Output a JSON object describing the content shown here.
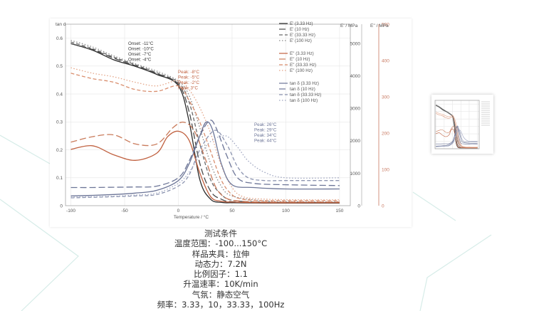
{
  "chart_data": {
    "type": "line",
    "title": "",
    "xlabel": "Temperature / °C",
    "xlim": [
      -105,
      160
    ],
    "x_ticks": [
      -100,
      -50,
      0,
      50,
      100,
      150
    ],
    "grid": true,
    "legend_position": "top-right",
    "axes": {
      "tan_delta": {
        "label": "tan d",
        "position": "left",
        "ylim": [
          0,
          0.65
        ],
        "ticks": [
          0,
          0.1,
          0.2,
          0.3,
          0.4,
          0.5,
          0.6
        ]
      },
      "e_prime": {
        "label": "E' / MPa",
        "position": "right-inner",
        "ylim": [
          0,
          5600
        ],
        "ticks": [
          0,
          1000,
          2000,
          3000,
          4000,
          5000
        ]
      },
      "e_double_prime": {
        "label": "E'' / MPa",
        "position": "right-outer",
        "ylim": [
          0,
          500
        ],
        "ticks": [
          0,
          100,
          200,
          300,
          400,
          500
        ]
      }
    },
    "series": [
      {
        "name": "E' (3.33 Hz)",
        "axis": "e_prime",
        "color": "#2b2b2b",
        "dash": "solid",
        "x": [
          -100,
          -80,
          -60,
          -40,
          -20,
          0,
          10,
          20,
          30,
          40,
          50,
          80,
          120,
          150
        ],
        "y": [
          5000,
          4800,
          4500,
          4300,
          4050,
          3700,
          2600,
          800,
          200,
          100,
          90,
          80,
          80,
          80
        ]
      },
      {
        "name": "E' (10 Hz)",
        "axis": "e_prime",
        "color": "#4a4a4a",
        "dash": "long-dash",
        "x": [
          -100,
          -80,
          -60,
          -40,
          -20,
          0,
          10,
          20,
          30,
          40,
          50,
          80,
          120,
          150
        ],
        "y": [
          5000,
          4820,
          4550,
          4320,
          4080,
          3750,
          2900,
          1300,
          450,
          200,
          120,
          100,
          90,
          90
        ]
      },
      {
        "name": "E' (33.33 Hz)",
        "axis": "e_prime",
        "color": "#6a6a6a",
        "dash": "dash",
        "x": [
          -100,
          -80,
          -60,
          -40,
          -20,
          0,
          10,
          20,
          30,
          40,
          50,
          80,
          120,
          150
        ],
        "y": [
          5050,
          4850,
          4580,
          4350,
          4100,
          3800,
          3200,
          1900,
          800,
          350,
          170,
          110,
          100,
          100
        ]
      },
      {
        "name": "E' (100 Hz)",
        "axis": "e_prime",
        "color": "#8a8a8a",
        "dash": "dot",
        "x": [
          -100,
          -80,
          -60,
          -40,
          -20,
          0,
          10,
          20,
          30,
          40,
          50,
          80,
          120,
          150
        ],
        "y": [
          5100,
          4900,
          4620,
          4380,
          4150,
          3850,
          3400,
          2400,
          1300,
          600,
          300,
          150,
          120,
          120
        ]
      },
      {
        "name": "E'' (3.33 Hz)",
        "axis": "e_double_prime",
        "color": "#c0603f",
        "dash": "solid",
        "x": [
          -100,
          -80,
          -60,
          -40,
          -20,
          -10,
          0,
          10,
          20,
          30,
          40,
          50,
          80,
          120,
          150
        ],
        "y": [
          155,
          165,
          140,
          125,
          145,
          190,
          205,
          180,
          90,
          25,
          12,
          10,
          8,
          8,
          8
        ]
      },
      {
        "name": "E'' (10 Hz)",
        "axis": "e_double_prime",
        "color": "#c97a5a",
        "dash": "long-dash",
        "x": [
          -100,
          -80,
          -60,
          -40,
          -20,
          -5,
          5,
          15,
          25,
          35,
          45,
          60,
          80,
          120,
          150
        ],
        "y": [
          175,
          190,
          195,
          170,
          170,
          215,
          230,
          205,
          130,
          50,
          20,
          12,
          10,
          10,
          10
        ]
      },
      {
        "name": "E'' (33.33 Hz)",
        "axis": "e_double_prime",
        "color": "#d98e6e",
        "dash": "dash",
        "x": [
          -100,
          -80,
          -60,
          -40,
          -20,
          0,
          10,
          20,
          30,
          40,
          50,
          60,
          80,
          120,
          150
        ],
        "y": [
          365,
          350,
          340,
          320,
          315,
          330,
          290,
          230,
          150,
          70,
          30,
          18,
          14,
          14,
          14
        ]
      },
      {
        "name": "E'' (100 Hz)",
        "axis": "e_double_prime",
        "color": "#e4a588",
        "dash": "dot",
        "x": [
          -100,
          -80,
          -60,
          -40,
          -20,
          0,
          10,
          20,
          30,
          40,
          50,
          60,
          80,
          120,
          150
        ],
        "y": [
          380,
          365,
          355,
          340,
          330,
          345,
          320,
          270,
          200,
          110,
          50,
          25,
          18,
          16,
          16
        ]
      },
      {
        "name": "tan δ (3.33 Hz)",
        "axis": "tan_delta",
        "color": "#6c7597",
        "dash": "solid",
        "x": [
          -100,
          -80,
          -60,
          -40,
          -20,
          0,
          10,
          20,
          26,
          32,
          40,
          50,
          70,
          100,
          150
        ],
        "y": [
          0.035,
          0.037,
          0.04,
          0.045,
          0.055,
          0.09,
          0.15,
          0.25,
          0.3,
          0.27,
          0.15,
          0.075,
          0.065,
          0.06,
          0.06
        ]
      },
      {
        "name": "tan δ (10 Hz)",
        "axis": "tan_delta",
        "color": "#6c7597",
        "dash": "long-dash",
        "x": [
          -100,
          -80,
          -60,
          -40,
          -20,
          0,
          10,
          20,
          29,
          35,
          45,
          55,
          70,
          100,
          150
        ],
        "y": [
          0.065,
          0.065,
          0.066,
          0.067,
          0.07,
          0.1,
          0.16,
          0.25,
          0.305,
          0.28,
          0.18,
          0.1,
          0.08,
          0.075,
          0.072
        ]
      },
      {
        "name": "tan δ (33.33 Hz)",
        "axis": "tan_delta",
        "color": "#8c94b0",
        "dash": "dash",
        "x": [
          -100,
          -80,
          -60,
          -40,
          -20,
          0,
          10,
          20,
          34,
          45,
          55,
          65,
          80,
          100,
          150
        ],
        "y": [
          0.028,
          0.03,
          0.032,
          0.035,
          0.04,
          0.07,
          0.11,
          0.2,
          0.27,
          0.22,
          0.14,
          0.1,
          0.09,
          0.09,
          0.09
        ]
      },
      {
        "name": "tan δ (100 Hz)",
        "axis": "tan_delta",
        "color": "#9ea5c0",
        "dash": "dot",
        "x": [
          -100,
          -80,
          -60,
          -40,
          -20,
          0,
          10,
          20,
          30,
          44,
          55,
          65,
          80,
          100,
          150
        ],
        "y": [
          0.03,
          0.032,
          0.034,
          0.038,
          0.045,
          0.08,
          0.12,
          0.18,
          0.23,
          0.25,
          0.21,
          0.16,
          0.12,
          0.1,
          0.1
        ]
      }
    ],
    "annotations": {
      "onset_lines": [
        "Onset: -11°C",
        "Onset: -10°C",
        "Onset:  -7°C",
        "Onset:  -4°C"
      ],
      "peak_edd_lines": [
        "Peak: -8°C",
        "Peak: -5°C",
        "Peak: -2°C",
        "Peak: 3°C"
      ],
      "peak_tan_lines": [
        "Peak: 26°C",
        "Peak: 29°C",
        "Peak: 34°C",
        "Peak: 44°C"
      ]
    }
  },
  "test_conditions": {
    "title": "测试条件",
    "lines": [
      "温度范围：-100...150°C",
      "样品夹具：拉伸",
      "动态力：7.2N",
      "比例因子：1.1",
      "升温速率：10K/min",
      "气氛：静态空气",
      "频率：3.33，10，33.33，100Hz"
    ]
  },
  "colors": {
    "e_prime": "#2b2b2b",
    "e_double_prime": "#c0603f",
    "tan_delta": "#6c7597",
    "e_double_prime_axis": "#c87860",
    "background_lines": "#d6ece8"
  }
}
